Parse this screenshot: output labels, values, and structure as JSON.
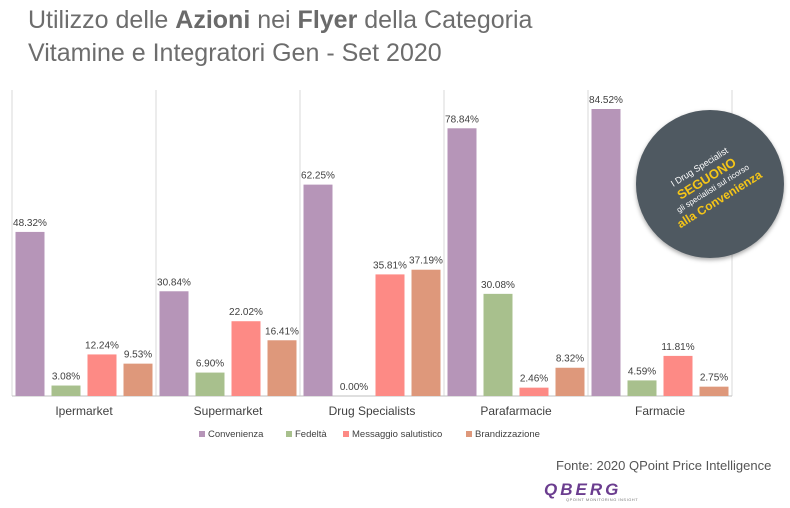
{
  "title": {
    "line1_a": "Utilizzo delle ",
    "line1_b": "Azioni",
    "line1_c": " nei ",
    "line1_d": "Flyer",
    "line1_e": " della Categoria",
    "line2": "Vitamine e Integratori Gen - Set 2020"
  },
  "badge": {
    "line1": "I Drug Specialist",
    "line2": "SEGUONO",
    "line3": "gli specialisti sul ricorso",
    "line4": "alla Convenienza"
  },
  "source": "Fonte: 2020 QPoint Price Intelligence",
  "logo": {
    "text": "QBERG",
    "sub": "QPOINT MONITORING INSIGHT"
  },
  "chart_data": {
    "type": "bar",
    "categories": [
      "Ipermarket",
      "Supermarket",
      "Drug Specialists",
      "Parafarmacie",
      "Farmacie"
    ],
    "series": [
      {
        "name": "Convenienza",
        "color": "#b695b8",
        "values": [
          48.32,
          30.84,
          62.25,
          78.84,
          84.52
        ],
        "labels": [
          "48.32%",
          "30.84%",
          "62.25%",
          "78.84%",
          "84.52%"
        ]
      },
      {
        "name": "Fedeltà",
        "color": "#a8c08d",
        "values": [
          3.08,
          6.9,
          0.0,
          30.08,
          4.59
        ],
        "labels": [
          "3.08%",
          "6.90%",
          "0.00%",
          "30.08%",
          "4.59%"
        ]
      },
      {
        "name": "Messaggio salutistico",
        "color": "#fd8a85",
        "values": [
          12.24,
          22.02,
          35.81,
          2.46,
          11.81
        ],
        "labels": [
          "12.24%",
          "22.02%",
          "35.81%",
          "2.46%",
          "11.81%"
        ]
      },
      {
        "name": "Brandizzazione",
        "color": "#de987b",
        "values": [
          9.53,
          16.41,
          37.19,
          8.32,
          2.75
        ],
        "labels": [
          "9.53%",
          "16.41%",
          "37.19%",
          "8.32%",
          "2.75%"
        ]
      }
    ],
    "ylim": [
      0,
      100
    ],
    "grid": false,
    "legend": "bottom"
  }
}
